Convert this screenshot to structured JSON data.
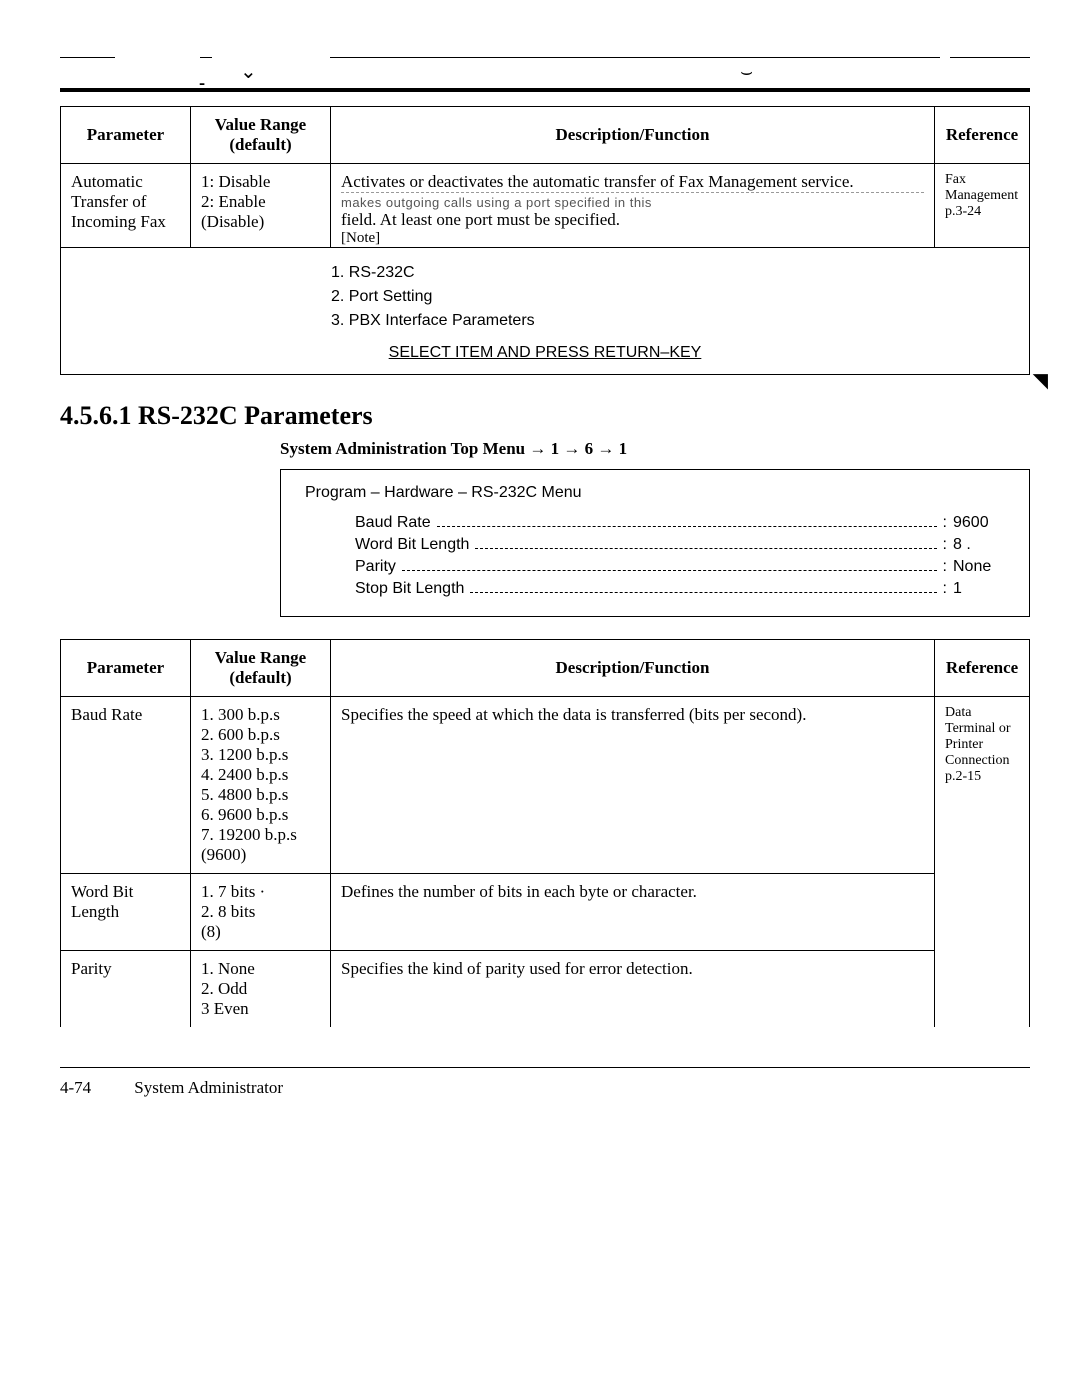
{
  "table1": {
    "headers": {
      "param": "Parameter",
      "range": "Value Range (default)",
      "desc": "Description/Function",
      "ref": "Reference"
    },
    "row": {
      "param": "Automatic Transfer of Incoming Fax",
      "range": "1: Disable\n2: Enable\n(Disable)",
      "desc1": "Activates or deactivates the automatic transfer of Fax Management service.",
      "occluded": "makes outgoing calls using a port specified in this",
      "desc2": "field.  At least one port must be specified.",
      "note": "[Note]",
      "ref": "Fax Management p.3-24"
    },
    "inner": {
      "i1": "1.  RS-232C",
      "i2": "2.  Port Setting",
      "i3": "3.  PBX Interface Parameters",
      "sel": "SELECT ITEM AND PRESS RETURN–KEY"
    }
  },
  "section": {
    "title": "4.5.6.1  RS-232C  Parameters",
    "sub": "System Administration Top Menu → 1 → 6 → 1"
  },
  "menu": {
    "hdr": "Program – Hardware – RS-232C Menu",
    "rows": [
      {
        "label": "Baud Rate",
        "val": "9600"
      },
      {
        "label": "Word Bit Length",
        "val": "8 ."
      },
      {
        "label": "Parity",
        "val": "None"
      },
      {
        "label": "Stop Bit Length",
        "val": "1"
      }
    ]
  },
  "table2": {
    "headers": {
      "param": "Parameter",
      "range": "Value Range (default)",
      "desc": "Description/Function",
      "ref": "Reference"
    },
    "rows": [
      {
        "param": "Baud Rate",
        "range": "1. 300 b.p.s\n2. 600 b.p.s\n3. 1200 b.p.s\n4. 2400 b.p.s\n5. 4800 b.p.s\n6. 9600 b.p.s\n7. 19200 b.p.s\n    (9600)",
        "desc": "Specifies the speed at which the data is transferred (bits per second).",
        "ref": "Data Terminal or Printer Connection p.2-15"
      },
      {
        "param": "Word Bit Length",
        "range": "1. 7 bits  ·\n2. 8 bits\n      (8)",
        "desc": "Defines the number of bits in each byte or character."
      },
      {
        "param": "Parity",
        "range": "1. None\n2. Odd\n3  Even",
        "desc": "Specifies the kind of parity used for error detection."
      }
    ]
  },
  "footer": {
    "page": "4-74",
    "label": "System Administrator"
  }
}
